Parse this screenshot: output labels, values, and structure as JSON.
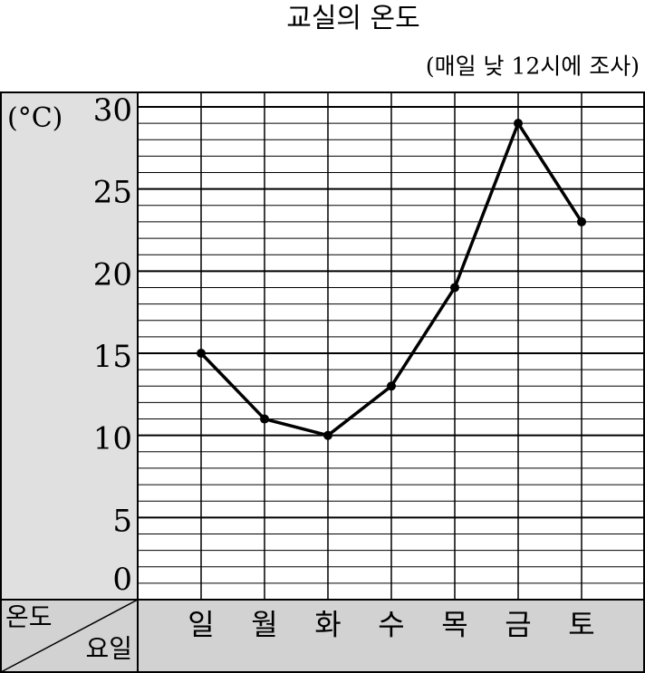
{
  "chart_data": {
    "type": "line",
    "title": "교실의 온도",
    "subtitle": "(매일 낮 12시에 조사)",
    "unit_label": "(°C)",
    "y_axis_label": "온도",
    "x_axis_label": "요일",
    "categories": [
      "일",
      "월",
      "화",
      "수",
      "목",
      "금",
      "토"
    ],
    "series": [
      {
        "name": "온도",
        "color": "#000000",
        "values": [
          15,
          11,
          10,
          13,
          19,
          29,
          23
        ]
      }
    ],
    "ylim": [
      0,
      30
    ],
    "yticks": [
      0,
      5,
      10,
      15,
      20,
      25,
      30
    ],
    "grid": true
  }
}
